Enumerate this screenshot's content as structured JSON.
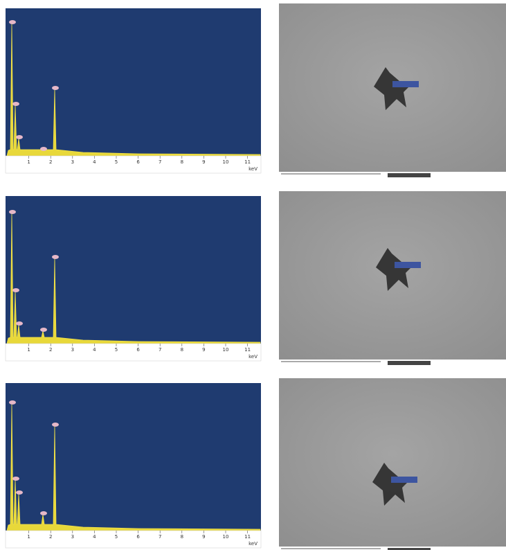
{
  "x_axis": {
    "ticks": [
      "1",
      "2",
      "3",
      "4",
      "5",
      "6",
      "7",
      "8",
      "9",
      "10",
      "11"
    ],
    "unit": "keV"
  }
}
